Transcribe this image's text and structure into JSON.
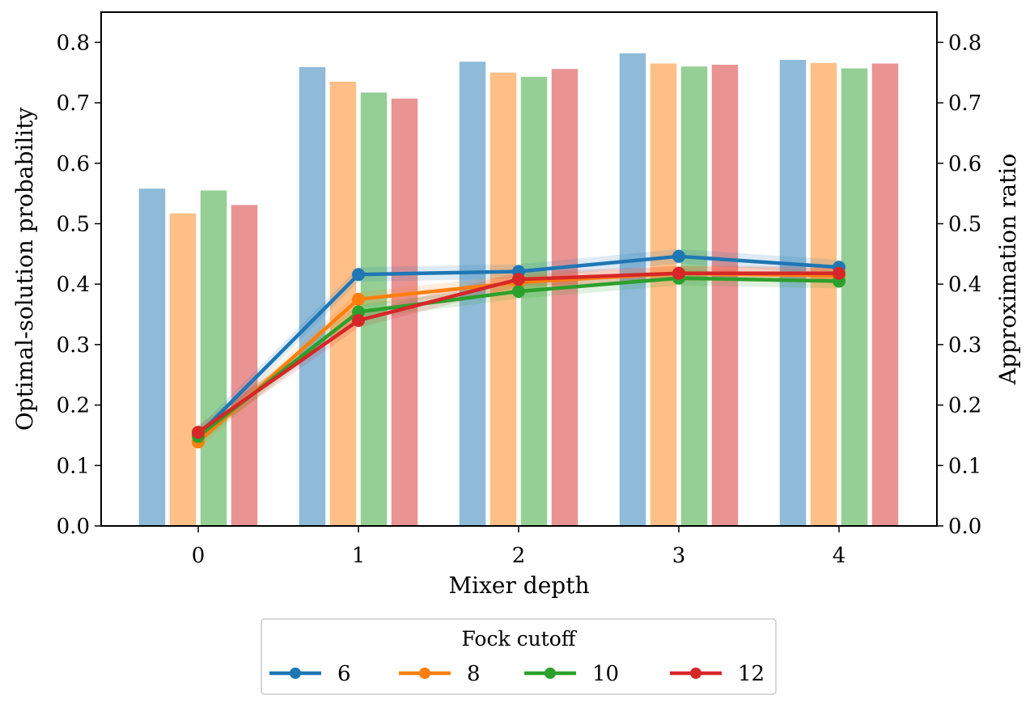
{
  "chart_data": {
    "type": "bar",
    "categories": [
      "0",
      "1",
      "2",
      "3",
      "4"
    ],
    "xlabel": "Mixer depth",
    "ylabel_left": "Optimal-solution probability",
    "ylabel_right": "Approximation ratio",
    "ylim": [
      0,
      0.85
    ],
    "yticks": [
      "0.0",
      "0.1",
      "0.2",
      "0.3",
      "0.4",
      "0.5",
      "0.6",
      "0.7",
      "0.8"
    ],
    "legend": {
      "title": "Fock cutoff",
      "placement": "bottom-center"
    },
    "grid": false,
    "series": [
      {
        "name": "6",
        "color": "#1f77b4",
        "bar_values": [
          0.559,
          0.76,
          0.769,
          0.783,
          0.772
        ],
        "line_values": [
          0.15,
          0.416,
          0.421,
          0.446,
          0.428
        ]
      },
      {
        "name": "8",
        "color": "#ff7f0e",
        "bar_values": [
          0.518,
          0.736,
          0.751,
          0.766,
          0.767
        ],
        "line_values": [
          0.139,
          0.375,
          0.403,
          0.418,
          0.414
        ]
      },
      {
        "name": "10",
        "color": "#2ca02c",
        "bar_values": [
          0.556,
          0.718,
          0.744,
          0.761,
          0.758
        ],
        "line_values": [
          0.148,
          0.354,
          0.388,
          0.41,
          0.405
        ]
      },
      {
        "name": "12",
        "color": "#d62728",
        "bar_values": [
          0.532,
          0.708,
          0.757,
          0.764,
          0.766
        ],
        "line_values": [
          0.155,
          0.34,
          0.408,
          0.418,
          0.418
        ]
      }
    ]
  }
}
